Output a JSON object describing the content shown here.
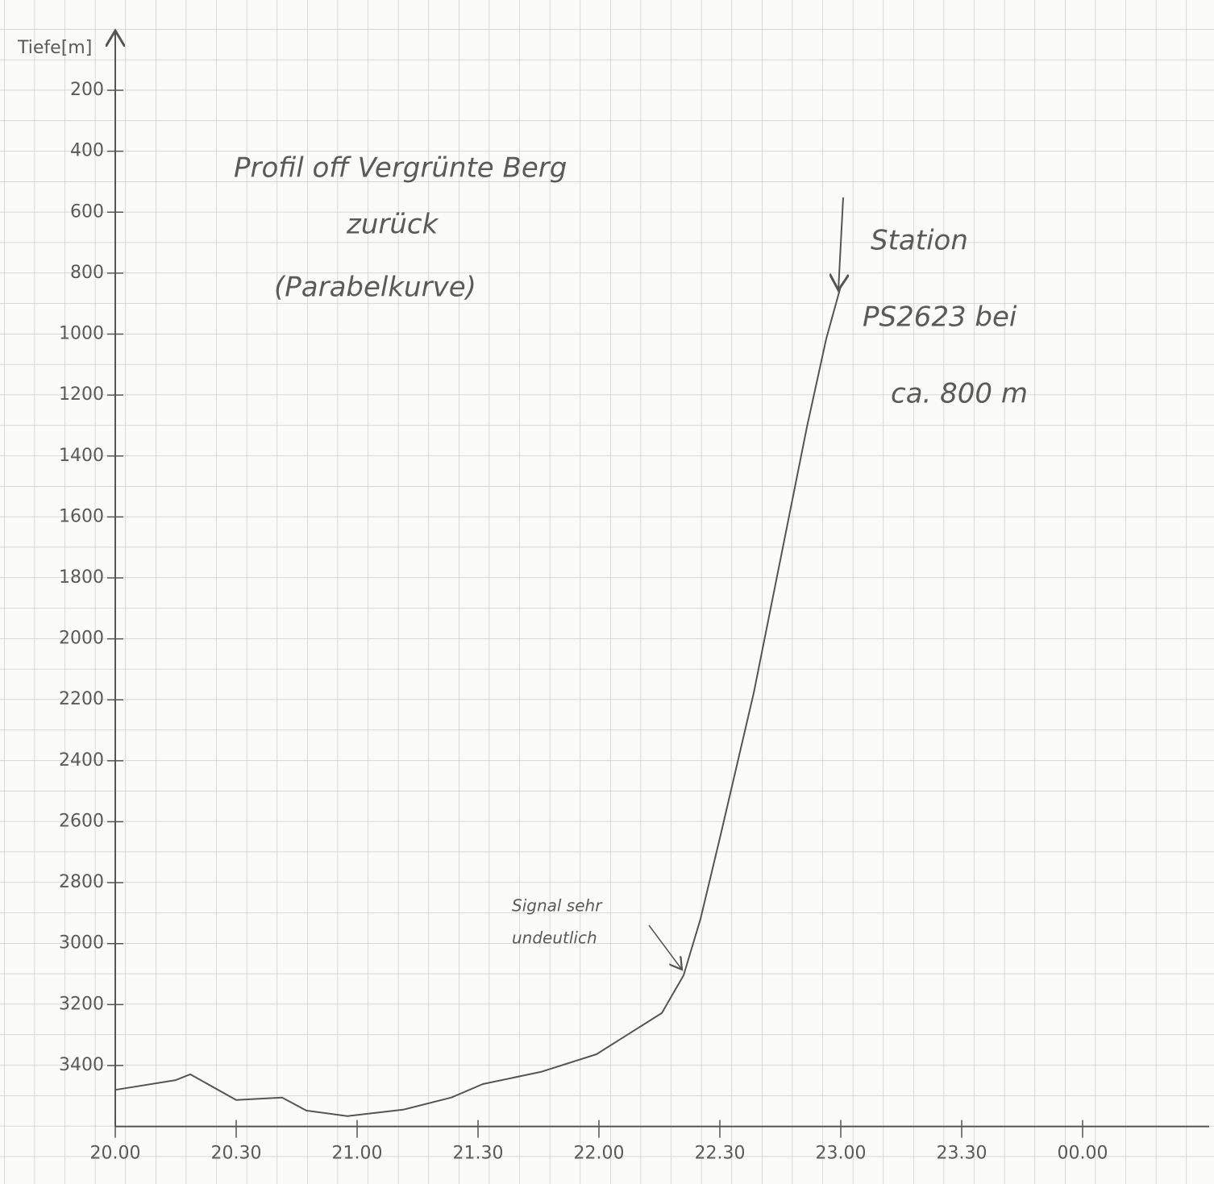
{
  "chart_data": {
    "type": "line",
    "y_label": "Tiefe[m]",
    "annotations": [
      "Profil off Vergrünte Berg",
      "zurück",
      "(Parabelkurve)",
      "Station",
      "PS2623 bei",
      "ca. 800 m",
      "Signal sehr",
      "undeutlich"
    ],
    "x": [
      20.0,
      20.25,
      20.31,
      20.5,
      20.69,
      20.79,
      20.96,
      21.19,
      21.39,
      21.52,
      21.76,
      21.99,
      22.26,
      22.35,
      22.42,
      22.5,
      22.64,
      22.74,
      22.86,
      22.94,
      23.0
    ],
    "values": [
      3480,
      3448,
      3429,
      3513,
      3505,
      3548,
      3566,
      3545,
      3505,
      3461,
      3421,
      3363,
      3228,
      3104,
      2919,
      2654,
      2178,
      1781,
      1305,
      1015,
      843
    ],
    "color": "#555555",
    "xlim": [
      20,
      24.5
    ],
    "ylim": [
      3600,
      0
    ],
    "xticks": [
      {
        "value": 20,
        "label": "20.00"
      },
      {
        "value": 20.5,
        "label": "20.30"
      },
      {
        "value": 21,
        "label": "21.00"
      },
      {
        "value": 21.5,
        "label": "21.30"
      },
      {
        "value": 22,
        "label": "22.00"
      },
      {
        "value": 22.5,
        "label": "22.30"
      },
      {
        "value": 23,
        "label": "23.00"
      },
      {
        "value": 23.5,
        "label": "23.30"
      },
      {
        "value": 24,
        "label": "00.00"
      }
    ],
    "yticks": [
      200,
      400,
      600,
      800,
      1000,
      1200,
      1400,
      1600,
      1800,
      2000,
      2200,
      2400,
      2600,
      2800,
      3000,
      3200,
      3400
    ]
  }
}
